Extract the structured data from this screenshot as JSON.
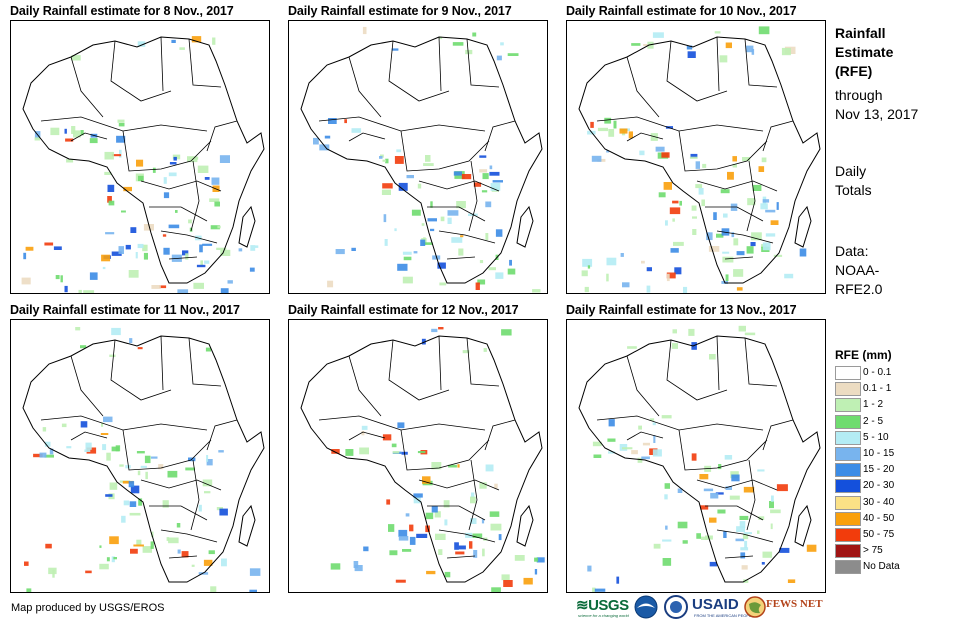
{
  "panels": [
    {
      "title": "Daily Rainfall estimate for 8 Nov., 2017",
      "rain_level": 0.85
    },
    {
      "title": "Daily Rainfall estimate for 9 Nov., 2017",
      "rain_level": 0.7
    },
    {
      "title": "Daily Rainfall estimate for 10 Nov., 2017",
      "rain_level": 0.9
    },
    {
      "title": "Daily Rainfall estimate for 11 Nov., 2017",
      "rain_level": 0.75
    },
    {
      "title": "Daily Rainfall estimate for 12 Nov., 2017",
      "rain_level": 0.65
    },
    {
      "title": "Daily Rainfall estimate for 13 Nov., 2017",
      "rain_level": 0.7
    }
  ],
  "side": {
    "heading_line1": "Rainfall",
    "heading_line2": "Estimate",
    "heading_line3": "(RFE)",
    "through_line1": "through",
    "through_line2": "Nov 13, 2017",
    "totals_line1": "Daily",
    "totals_line2": "Totals",
    "data_line1": "Data:",
    "data_line2": "NOAA-",
    "data_line3": "RFE2.0"
  },
  "legend": {
    "title": "RFE (mm)",
    "items": [
      {
        "label": "0 - 0.1",
        "color": "#ffffff"
      },
      {
        "label": "0.1 - 1",
        "color": "#ecdcc2"
      },
      {
        "label": "1 - 2",
        "color": "#bff0b4"
      },
      {
        "label": "2 - 5",
        "color": "#6fdc6f"
      },
      {
        "label": "5 - 10",
        "color": "#b4ecf4"
      },
      {
        "label": "10 - 15",
        "color": "#78b4ee"
      },
      {
        "label": "15 - 20",
        "color": "#3c8ce6"
      },
      {
        "label": "20 - 30",
        "color": "#1450dc"
      },
      {
        "label": "30 - 40",
        "color": "#fbe186"
      },
      {
        "label": "40 - 50",
        "color": "#f9a00c"
      },
      {
        "label": "50 - 75",
        "color": "#f23c0c"
      },
      {
        "label": "> 75",
        "color": "#a01414"
      },
      {
        "label": "No Data",
        "color": "#8c8c8c"
      }
    ]
  },
  "credit": "Map produced by USGS/EROS",
  "logos": {
    "usgs": "USGS",
    "usgs_tag": "science for a changing world",
    "usaid": "USAID",
    "usaid_tag": "FROM THE AMERICAN PEOPLE",
    "fews": "FEWS NET"
  }
}
